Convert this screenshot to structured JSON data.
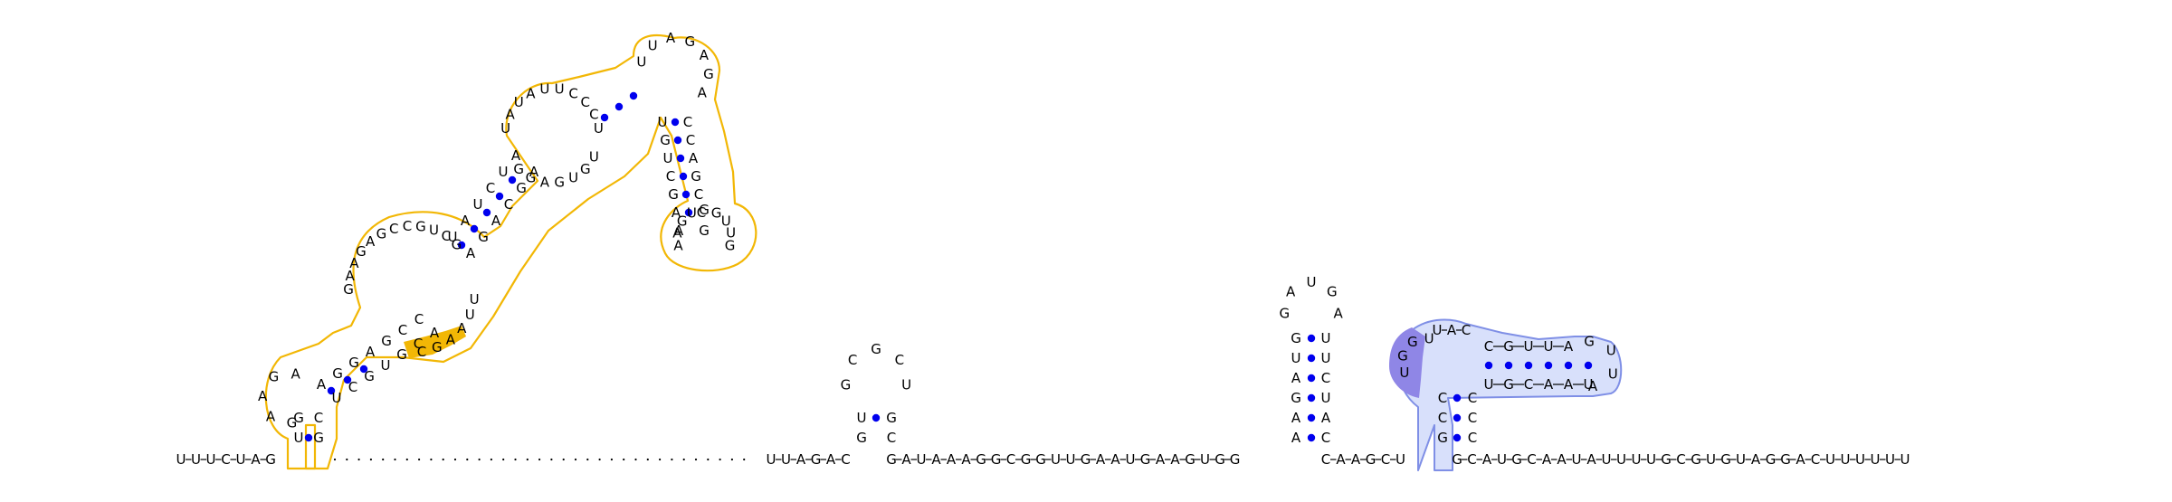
{
  "strand_left": "UUUCUAG",
  "spacer_count": 35,
  "strand_mid": "UUAGAC",
  "strand_right": "GAUAAAGGCGGUUGAAUGAAGUGG",
  "strand_mid2": "CAAGCU",
  "strand_tail": "GCAUGCAAUAUUUUGCGUGUAGGACUUUUUU",
  "hairpin_small": {
    "left_stem": [
      "G",
      "U"
    ],
    "loop": [
      "G",
      "C",
      "G",
      "C",
      "U"
    ],
    "right_stem": [
      "C",
      "G"
    ]
  },
  "hairpin_tall": {
    "left_stem": [
      "A",
      "A",
      "G",
      "A",
      "U",
      "G"
    ],
    "loop": [
      "G",
      "A",
      "U",
      "G",
      "A"
    ],
    "right_stem": [
      "C",
      "A",
      "U",
      "C",
      "U",
      "U"
    ]
  },
  "pseudoknot": {
    "left_col_outer": [
      "U",
      "G",
      "G",
      "U"
    ],
    "left_col_inner": [
      "G",
      "C",
      "C"
    ],
    "top_row": [
      "C",
      "G",
      "U",
      "U",
      "A"
    ],
    "bottom_row": [
      "U",
      "G",
      "C",
      "A",
      "A",
      "U"
    ],
    "loop": [
      "G",
      "U",
      "U",
      "A"
    ],
    "top_prefix": [
      "U",
      "A",
      "C"
    ]
  },
  "big_structure": {
    "seq_a": [
      "G",
      "A",
      "A",
      "G",
      "A",
      "G",
      "C",
      "C",
      "G",
      "U",
      "C",
      "G",
      "U",
      "U",
      "C",
      "A",
      "G",
      "U",
      "A",
      "G"
    ],
    "seq_b": [
      "U",
      "A",
      "U",
      "C",
      "U",
      "U",
      "A",
      "U",
      "U",
      "A",
      "U",
      "U",
      "C",
      "C",
      "C",
      "U"
    ],
    "seq_c": [
      "U",
      "U",
      "A",
      "G",
      "A",
      "G",
      "A",
      "C",
      "C",
      "A",
      "G",
      "C",
      "G",
      "U"
    ],
    "seq_d": [
      "G",
      "U",
      "G",
      "G",
      "A",
      "A",
      "C",
      "G",
      "U",
      "C",
      "C",
      "U",
      "G",
      "U",
      "C",
      "A"
    ],
    "seq_e": [
      "A",
      "A",
      "U",
      "G",
      "U",
      "G",
      "A",
      "G",
      "A",
      "G",
      "A",
      "C",
      "U",
      "A",
      "A",
      "C",
      "G",
      "U",
      "A",
      "C",
      "U",
      "U",
      "A",
      "C",
      "G",
      "U",
      "U",
      "G",
      "A",
      "C",
      "G",
      "G"
    ]
  },
  "colors": {
    "highlight_yellow": "#f2b705",
    "highlight_blue_fill": "#d8e0fb",
    "highlight_blue_stroke": "#7f8fe6",
    "highlight_purple": "#8f86e6",
    "base_pair_dot": "#0000ee"
  }
}
